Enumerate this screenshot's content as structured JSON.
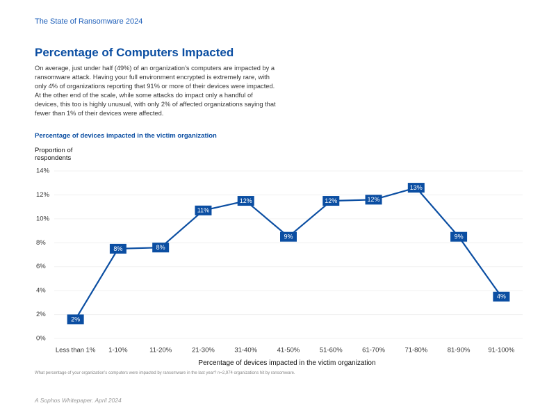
{
  "header": {
    "report": "The State of Ransomware 2024",
    "title": "Percentage of Computers Impacted",
    "body": "On average, just under half (49%) of an organization’s computers are impacted by a ransomware attack. Having your full environment encrypted is extremely rare, with only 4% of organizations reporting that 91% or more of their devices were impacted. At the other end of the scale, while some attacks do impact only a handful of devices, this too is highly unusual, with only 2% of affected organizations saying that fewer than 1% of their devices were affected."
  },
  "chart_data": {
    "type": "line",
    "title": "Percentage of devices impacted in the victim organization",
    "y_label": "Proportion of respondents",
    "x_label": "Percentage of devices impacted in the victim organization",
    "categories": [
      "Less than 1%",
      "1-10%",
      "11-20%",
      "21-30%",
      "31-40%",
      "41-50%",
      "51-60%",
      "61-70%",
      "71-80%",
      "81-90%",
      "91-100%"
    ],
    "values": [
      1.6,
      7.5,
      7.6,
      10.7,
      11.5,
      8.5,
      11.5,
      11.6,
      12.6,
      8.5,
      3.5
    ],
    "value_labels": [
      "2%",
      "8%",
      "8%",
      "11%",
      "12%",
      "9%",
      "12%",
      "12%",
      "13%",
      "9%",
      "4%"
    ],
    "color": "#0b4ea2",
    "ylim": [
      0,
      14
    ],
    "yticks": [
      {
        "value": 0,
        "label": "0%"
      },
      {
        "value": 2,
        "label": "2%"
      },
      {
        "value": 4,
        "label": "4%"
      },
      {
        "value": 6,
        "label": "6%"
      },
      {
        "value": 8,
        "label": "8%"
      },
      {
        "value": 10,
        "label": "10%"
      },
      {
        "value": 12,
        "label": "12%"
      },
      {
        "value": 14,
        "label": "14%"
      }
    ],
    "grid": true,
    "note": "What percentage of your organization’s computers were impacted by ransomware in the last year? n=2,974 organizations hit by ransomware."
  },
  "footer": "A Sophos Whitepaper. April 2024"
}
